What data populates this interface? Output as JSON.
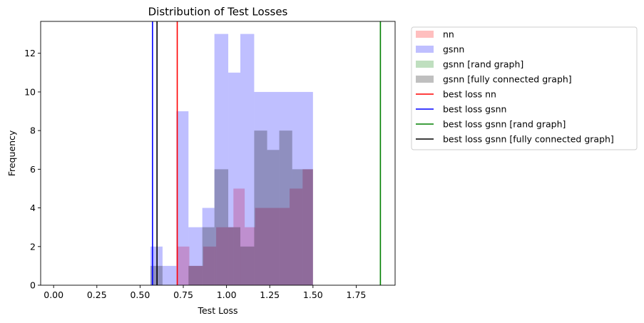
{
  "chart_data": {
    "type": "bar",
    "title": "Distribution of Test Losses",
    "xlabel": "Test Loss",
    "ylabel": "Frequency",
    "xlim": [
      -0.075,
      1.975
    ],
    "ylim": [
      0,
      13.65
    ],
    "xticks": [
      0.0,
      0.25,
      0.5,
      0.75,
      1.0,
      1.25,
      1.5,
      1.75
    ],
    "xtick_labels": [
      "0.00",
      "0.25",
      "0.50",
      "0.75",
      "1.00",
      "1.25",
      "1.50",
      "1.75"
    ],
    "yticks": [
      0,
      2,
      4,
      6,
      8,
      10,
      12
    ],
    "ytick_labels": [
      "0",
      "2",
      "4",
      "6",
      "8",
      "10",
      "12"
    ],
    "bin_edges": [
      0.555,
      0.6025,
      0.6275,
      0.7125,
      0.7825,
      0.8575,
      0.94,
      1.0075,
      1.0825,
      1.1625,
      1.235,
      1.3075,
      1.38,
      1.4975
    ],
    "histograms": [
      {
        "name": "nn",
        "color": "#ff0000",
        "alpha": 0.25,
        "bins": [
          {
            "x0": 0.715,
            "x1": 0.785,
            "count": 2
          },
          {
            "x0": 0.785,
            "x1": 0.865,
            "count": 1
          },
          {
            "x0": 0.865,
            "x1": 0.94,
            "count": 2
          },
          {
            "x0": 0.94,
            "x1": 1.04,
            "count": 3
          },
          {
            "x0": 1.04,
            "x1": 1.105,
            "count": 5
          },
          {
            "x0": 1.105,
            "x1": 1.165,
            "count": 3
          },
          {
            "x0": 1.165,
            "x1": 1.235,
            "count": 4
          },
          {
            "x0": 1.235,
            "x1": 1.305,
            "count": 4
          },
          {
            "x0": 1.305,
            "x1": 1.365,
            "count": 4
          },
          {
            "x0": 1.365,
            "x1": 1.44,
            "count": 5
          },
          {
            "x0": 1.44,
            "x1": 1.5,
            "count": 6
          }
        ]
      },
      {
        "name": "gsnn",
        "color": "#0000ff",
        "alpha": 0.25,
        "bins": [
          {
            "x0": 0.56,
            "x1": 0.63,
            "count": 2
          },
          {
            "x0": 0.63,
            "x1": 0.71,
            "count": 1
          },
          {
            "x0": 0.71,
            "x1": 0.78,
            "count": 9
          },
          {
            "x0": 0.78,
            "x1": 0.86,
            "count": 3
          },
          {
            "x0": 0.86,
            "x1": 0.93,
            "count": 4
          },
          {
            "x0": 0.93,
            "x1": 1.01,
            "count": 13
          },
          {
            "x0": 1.01,
            "x1": 1.08,
            "count": 11
          },
          {
            "x0": 1.08,
            "x1": 1.16,
            "count": 13
          },
          {
            "x0": 1.16,
            "x1": 1.5,
            "count": 10
          }
        ]
      },
      {
        "name": "gsnn [rand graph]",
        "color": "#008000",
        "alpha": 0.25,
        "bins": []
      },
      {
        "name": "gsnn [fully connected graph]",
        "color": "#000000",
        "alpha": 0.25,
        "bins": [
          {
            "x0": 0.56,
            "x1": 0.63,
            "count": 1
          },
          {
            "x0": 0.78,
            "x1": 0.86,
            "count": 1
          },
          {
            "x0": 0.86,
            "x1": 0.93,
            "count": 3
          },
          {
            "x0": 0.93,
            "x1": 1.01,
            "count": 6
          },
          {
            "x0": 1.01,
            "x1": 1.08,
            "count": 3
          },
          {
            "x0": 1.08,
            "x1": 1.16,
            "count": 2
          },
          {
            "x0": 1.16,
            "x1": 1.235,
            "count": 8
          },
          {
            "x0": 1.235,
            "x1": 1.305,
            "count": 7
          },
          {
            "x0": 1.305,
            "x1": 1.38,
            "count": 8
          },
          {
            "x0": 1.38,
            "x1": 1.5,
            "count": 6
          }
        ]
      }
    ],
    "vlines": [
      {
        "name": "best loss nn",
        "x": 0.715,
        "color": "#ff0000"
      },
      {
        "name": "best loss gsnn",
        "x": 0.572,
        "color": "#0000ff"
      },
      {
        "name": "best loss gsnn [rand graph]",
        "x": 1.89,
        "color": "#008000"
      },
      {
        "name": "best loss gsnn [fully connected graph]",
        "x": 0.598,
        "color": "#000000"
      }
    ],
    "legend_position": "outside-top-right",
    "grid": false
  }
}
